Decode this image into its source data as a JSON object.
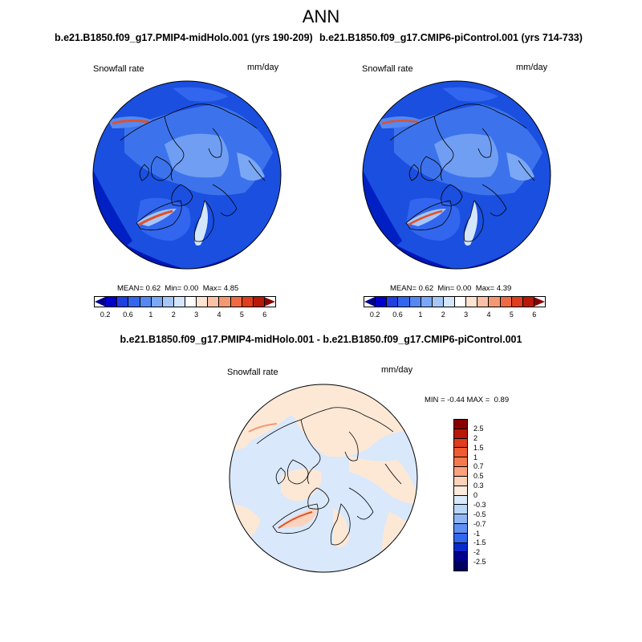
{
  "season": "ANN",
  "panels": [
    {
      "case_title": "b.e21.B1850.f09_g17.PMIP4-midHolo.001 (yrs 190-209)",
      "variable": "Snowfall rate",
      "units": "mm/day",
      "mean_label": "MEAN=",
      "mean": "0.62",
      "min_label": "Min=",
      "min": "0.00",
      "max_label": "Max=",
      "max": "4.85"
    },
    {
      "case_title": "b.e21.B1850.f09_g17.CMIP6-piControl.001 (yrs 714-733)",
      "variable": "Snowfall rate",
      "units": "mm/day",
      "mean_label": "MEAN=",
      "mean": "0.62",
      "min_label": "Min=",
      "min": "0.00",
      "max_label": "Max=",
      "max": "4.39"
    }
  ],
  "diff": {
    "title": "b.e21.B1850.f09_g17.PMIP4-midHolo.001 - b.e21.B1850.f09_g17.CMIP6-piControl.001",
    "variable": "Snowfall rate",
    "units": "mm/day",
    "min_label": "MIN =",
    "min": "-0.44",
    "max_label": "MAX =",
    "max": "0.89"
  },
  "colorbar": {
    "ticks": [
      "0.2",
      "0.6",
      "1",
      "2",
      "3",
      "4",
      "5",
      "6"
    ],
    "colors": [
      "#00008f",
      "#0000cc",
      "#1f3fe0",
      "#3366ee",
      "#5588f2",
      "#7ba8f5",
      "#a6c6f8",
      "#d4e6fb",
      "#ffffff",
      "#fde4d2",
      "#f9c1a6",
      "#f49872",
      "#ef6a44",
      "#e03c1e",
      "#b81808",
      "#8a0000"
    ]
  },
  "diff_colorbar": {
    "ticks": [
      "2.5",
      "2",
      "1.5",
      "1",
      "0.7",
      "0.5",
      "0.3",
      "0",
      "-0.3",
      "-0.5",
      "-0.7",
      "-1",
      "-1.5",
      "-2",
      "-2.5"
    ],
    "colors": [
      "#8a0000",
      "#b81808",
      "#e03c1e",
      "#ef5a30",
      "#f47a4c",
      "#f9a37e",
      "#fdd2b8",
      "#fdebdc",
      "#dbeafb",
      "#bcd6f8",
      "#8fb6f2",
      "#5f8ff0",
      "#3366ee",
      "#0a2acc",
      "#00008f",
      "#00005f"
    ]
  },
  "colors": {
    "ocean_blue": "#1a4fe0",
    "land_blue": "#3c73ec",
    "deep_blue": "#0016b8",
    "pale_blue": "#6f9ef3",
    "snow_hot": "#e0502a",
    "diff_pos": "#fde8d6",
    "diff_neg": "#d9e8fb",
    "coast": "#000000"
  }
}
